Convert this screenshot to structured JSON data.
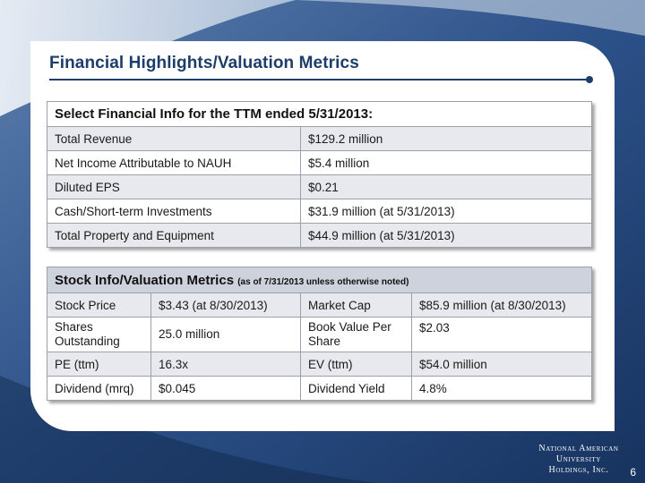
{
  "slide": {
    "title": "Financial Highlights/Valuation Metrics",
    "page_number": "6",
    "logo_line1": "National American University",
    "logo_line2": "Holdings, Inc."
  },
  "financial": {
    "header": "Select Financial Info for the TTM ended 5/31/2013:",
    "rows": [
      {
        "label": "Total Revenue",
        "value": "$129.2 million"
      },
      {
        "label": "Net Income Attributable to NAUH",
        "value": "$5.4 million"
      },
      {
        "label": "Diluted EPS",
        "value": "$0.21"
      },
      {
        "label": "Cash/Short-term Investments",
        "value": "$31.9 million (at 5/31/2013)"
      },
      {
        "label": "Total Property and Equipment",
        "value": "$44.9 million (at 5/31/2013)"
      }
    ]
  },
  "stock": {
    "header": "Stock Info/Valuation Metrics",
    "header_note": "(as of 7/31/2013 unless otherwise noted)",
    "rows": [
      {
        "label1": "Stock Price",
        "value1": "$3.43 (at 8/30/2013)",
        "label2": "Market Cap",
        "value2": "$85.9 million (at 8/30/2013)"
      },
      {
        "label1": "Shares Outstanding",
        "value1": "25.0 million",
        "label2": "Book Value Per Share",
        "value2": "$2.03"
      },
      {
        "label1": "PE (ttm)",
        "value1": "16.3x",
        "label2": "EV (ttm)",
        "value2": "$54.0 million"
      },
      {
        "label1": "Dividend (mrq)",
        "value1": "$0.045",
        "label2": "Dividend Yield",
        "value2": "4.8%"
      }
    ]
  },
  "colors": {
    "background_dark": "#1e3c6e",
    "background_light": "#c9d6e6",
    "title": "#1d3d6b",
    "row_alt": "#e7e9ee",
    "stock_header": "#cdd2dc"
  }
}
